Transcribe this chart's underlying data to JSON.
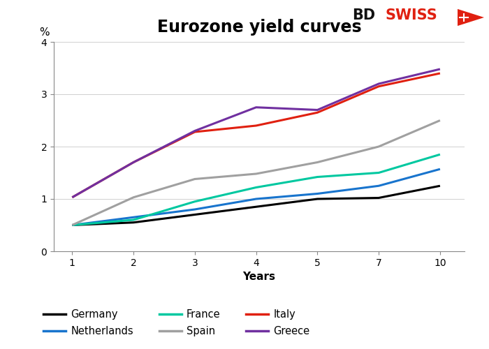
{
  "title": "Eurozone yield curves",
  "xlabel": "Years",
  "ylabel": "%",
  "x": [
    1,
    2,
    3,
    4,
    5,
    7,
    10
  ],
  "series": {
    "Germany": [
      0.5,
      0.55,
      0.7,
      0.85,
      1.0,
      1.02,
      1.25
    ],
    "Netherlands": [
      0.5,
      0.65,
      0.8,
      1.0,
      1.1,
      1.25,
      1.57
    ],
    "France": [
      0.5,
      0.6,
      0.95,
      1.22,
      1.42,
      1.5,
      1.85
    ],
    "Spain": [
      0.5,
      1.03,
      1.38,
      1.48,
      1.7,
      2.0,
      2.5
    ],
    "Italy": [
      1.03,
      1.7,
      2.28,
      2.4,
      2.65,
      3.15,
      3.4
    ],
    "Greece": [
      1.03,
      1.7,
      2.3,
      2.75,
      2.7,
      3.2,
      3.48
    ]
  },
  "colors": {
    "Germany": "#000000",
    "Netherlands": "#1874cd",
    "France": "#00c8a0",
    "Spain": "#a0a0a0",
    "Italy": "#e02010",
    "Greece": "#7030a0"
  },
  "legend_order": [
    "Germany",
    "Netherlands",
    "France",
    "Spain",
    "Italy",
    "Greece"
  ],
  "ylim": [
    0,
    4
  ],
  "yticks": [
    0,
    1,
    2,
    3,
    4
  ],
  "bg_color": "#ffffff",
  "title_fontsize": 17,
  "axis_label_fontsize": 11,
  "tick_fontsize": 10,
  "legend_fontsize": 10.5,
  "bdswiss_bd_color": "#111111",
  "bdswiss_swiss_color": "#e02010"
}
